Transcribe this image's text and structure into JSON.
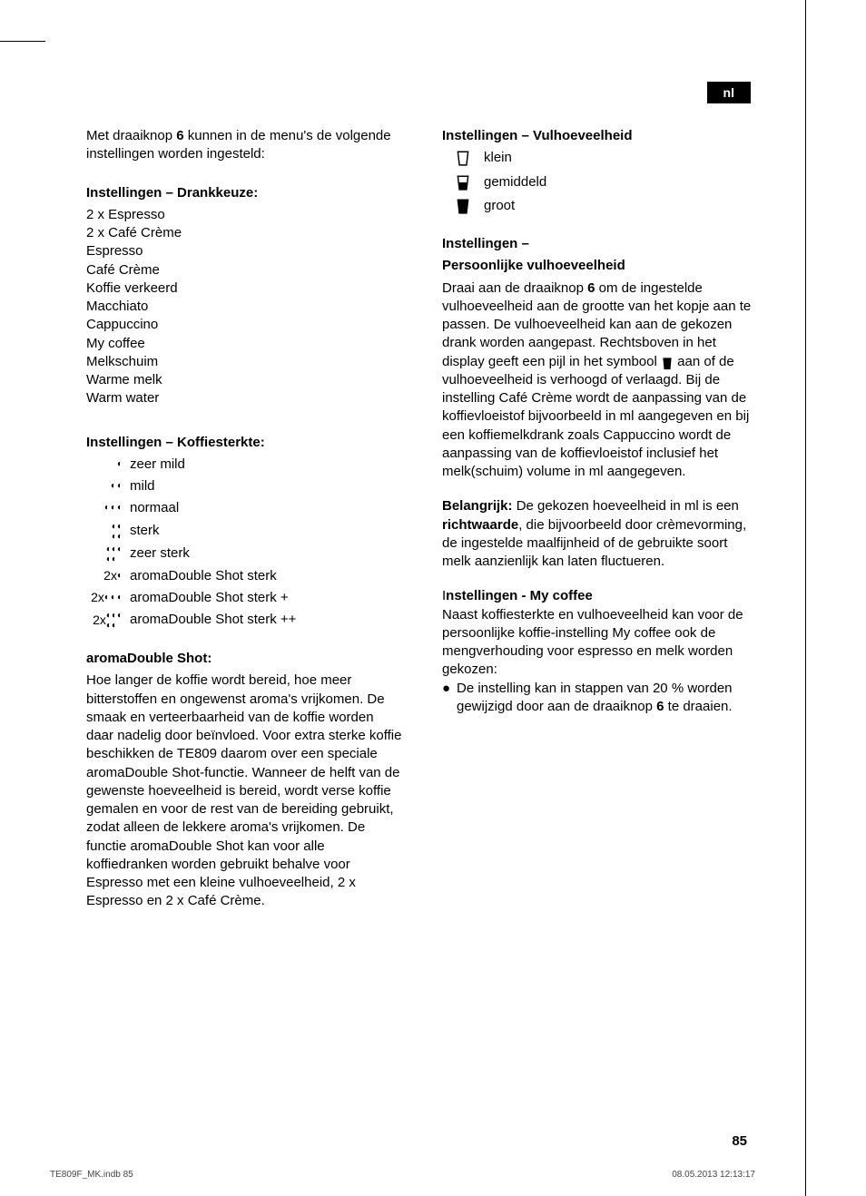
{
  "lang_badge": "nl",
  "intro": "Met draaiknop 6 kunnen in de menu's de volgende instellingen worden ingesteld:",
  "drinks": {
    "title": "Instellingen – Drankkeuze:",
    "items": [
      "2 x Espresso",
      "2 x Café Crème",
      "Espresso",
      "Café Crème",
      "Koffie verkeerd",
      "Macchiato",
      "Cappuccino",
      "My coffee",
      "Melkschuim",
      "Warme melk",
      "Warm water"
    ]
  },
  "strength": {
    "title": "Instellingen – Koffiesterkte:",
    "levels": [
      {
        "label": "zeer mild",
        "prefix": "",
        "beans": 1,
        "rows": 1
      },
      {
        "label": "mild",
        "prefix": "",
        "beans": 2,
        "rows": 1
      },
      {
        "label": "normaal",
        "prefix": "",
        "beans": 3,
        "rows": 1
      },
      {
        "label": "sterk",
        "prefix": "",
        "beans": 4,
        "rows": 2
      },
      {
        "label": "zeer sterk",
        "prefix": "",
        "beans": 5,
        "rows": 2
      },
      {
        "label": "aromaDouble Shot sterk",
        "prefix": "2x",
        "beans": 1,
        "rows": 1
      },
      {
        "label": "aromaDouble Shot sterk +",
        "prefix": "2x",
        "beans": 3,
        "rows": 1
      },
      {
        "label": "aromaDouble Shot sterk ++",
        "prefix": "2x",
        "beans": 5,
        "rows": 2
      }
    ]
  },
  "ads": {
    "title": "aromaDouble Shot:",
    "body": "Hoe langer de koffie wordt bereid, hoe meer bitterstoffen en ongewenst aroma's vrijkomen. De smaak en verteerbaarheid van de koffie worden daar nadelig door beïnvloed. Voor extra sterke koffie beschik­ken de TE809 daarom over een speciale aromaDouble Shot-functie. Wanneer de helft van de gewenste hoeveelheid is bereid, wordt verse koffie gemalen en voor de rest van de bereiding gebruikt, zodat alleen de lekkere aroma's vrijkomen. De functie aromaDouble Shot kan voor alle koffiedranken worden gebruikt behalve voor Espresso met een kleine vulhoeveelheid, 2 x Espresso en 2 x Café Crème."
  },
  "volume": {
    "title": "Instellingen – Vulhoeveelheid",
    "levels": [
      {
        "label": "klein",
        "fill": "empty"
      },
      {
        "label": "gemiddeld",
        "fill": "half"
      },
      {
        "label": "groot",
        "fill": "full"
      }
    ]
  },
  "personal": {
    "title1": "Instellingen –",
    "title2": "Persoonlijke vulhoeveelheid",
    "body_pre": "Draai aan de draaiknop 6 om de inge­stelde vulhoeveelheid aan de grootte van het kopje aan te passen. De vulhoeveel­heid kan aan de gekozen drank worden aangepast. Rechtsboven in het display geeft een pijl in het symbool ",
    "body_post": " aan of de vulhoeveelheid is verhoogd of verlaagd. Bij de instelling Café Crème wordt de aanpas­sing van de koffievloeistof bijvoorbeeld in ml aangegeven en bij een koffiemelkdrank zoals Cappuccino wordt de aanpassing van de koffievloeistof inclusief het melk(schuim) volume in ml aangegeven."
  },
  "important": {
    "label": "Belangrijk:",
    "text_pre": " De gekozen hoeveelheid in ml is een ",
    "bold": "richtwaarde",
    "text_post": ", die bijvoorbeeld door crèmevorming, de ingestelde maalfijnheid of de gebruikte soort melk aanzienlijk kan laten fluctueren."
  },
  "mycoffee": {
    "title": "Instellingen - My coffee",
    "intro": "Naast koffiesterkte en vulhoeveelheid kan voor de persoonlijke koffie-instelling My coffee ook de mengverhouding voor espresso en melk worden gekozen:",
    "bullet": "De instelling kan in stappen van 20 % worden gewijzigd door aan de draaiknop 6 te draaien."
  },
  "page_number": "85",
  "footer_left": "TE809F_MK.indb   85",
  "footer_right": "08.05.2013   12:13:17"
}
